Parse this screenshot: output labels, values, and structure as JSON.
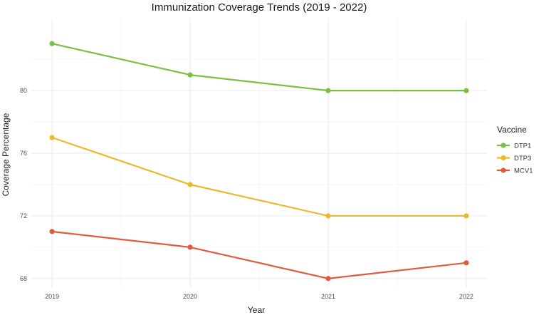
{
  "chart_data": {
    "type": "line",
    "title": "Immunization Coverage Trends (2019 - 2022)",
    "xlabel": "Year",
    "ylabel": "Coverage Percentage",
    "x": [
      2019,
      2020,
      2021,
      2022
    ],
    "x_tick_labels": [
      "2019",
      "2020",
      "2021",
      "2022"
    ],
    "y_ticks": [
      68,
      72,
      76,
      80
    ],
    "y_tick_labels": [
      "68",
      "72",
      "76",
      "80"
    ],
    "ylim": [
      67.4,
      84.6
    ],
    "xlim": [
      2018.85,
      2022.15
    ],
    "grid": true,
    "legend": {
      "title": "Vaccine",
      "position": "right"
    },
    "series": [
      {
        "name": "DTP1",
        "color": "#7cbf45",
        "values": [
          83,
          81,
          80,
          80
        ]
      },
      {
        "name": "DTP3",
        "color": "#e8bb2e",
        "values": [
          77,
          74,
          72,
          72
        ]
      },
      {
        "name": "MCV1",
        "color": "#e05a40",
        "values": [
          71,
          70,
          68,
          69
        ]
      }
    ]
  }
}
